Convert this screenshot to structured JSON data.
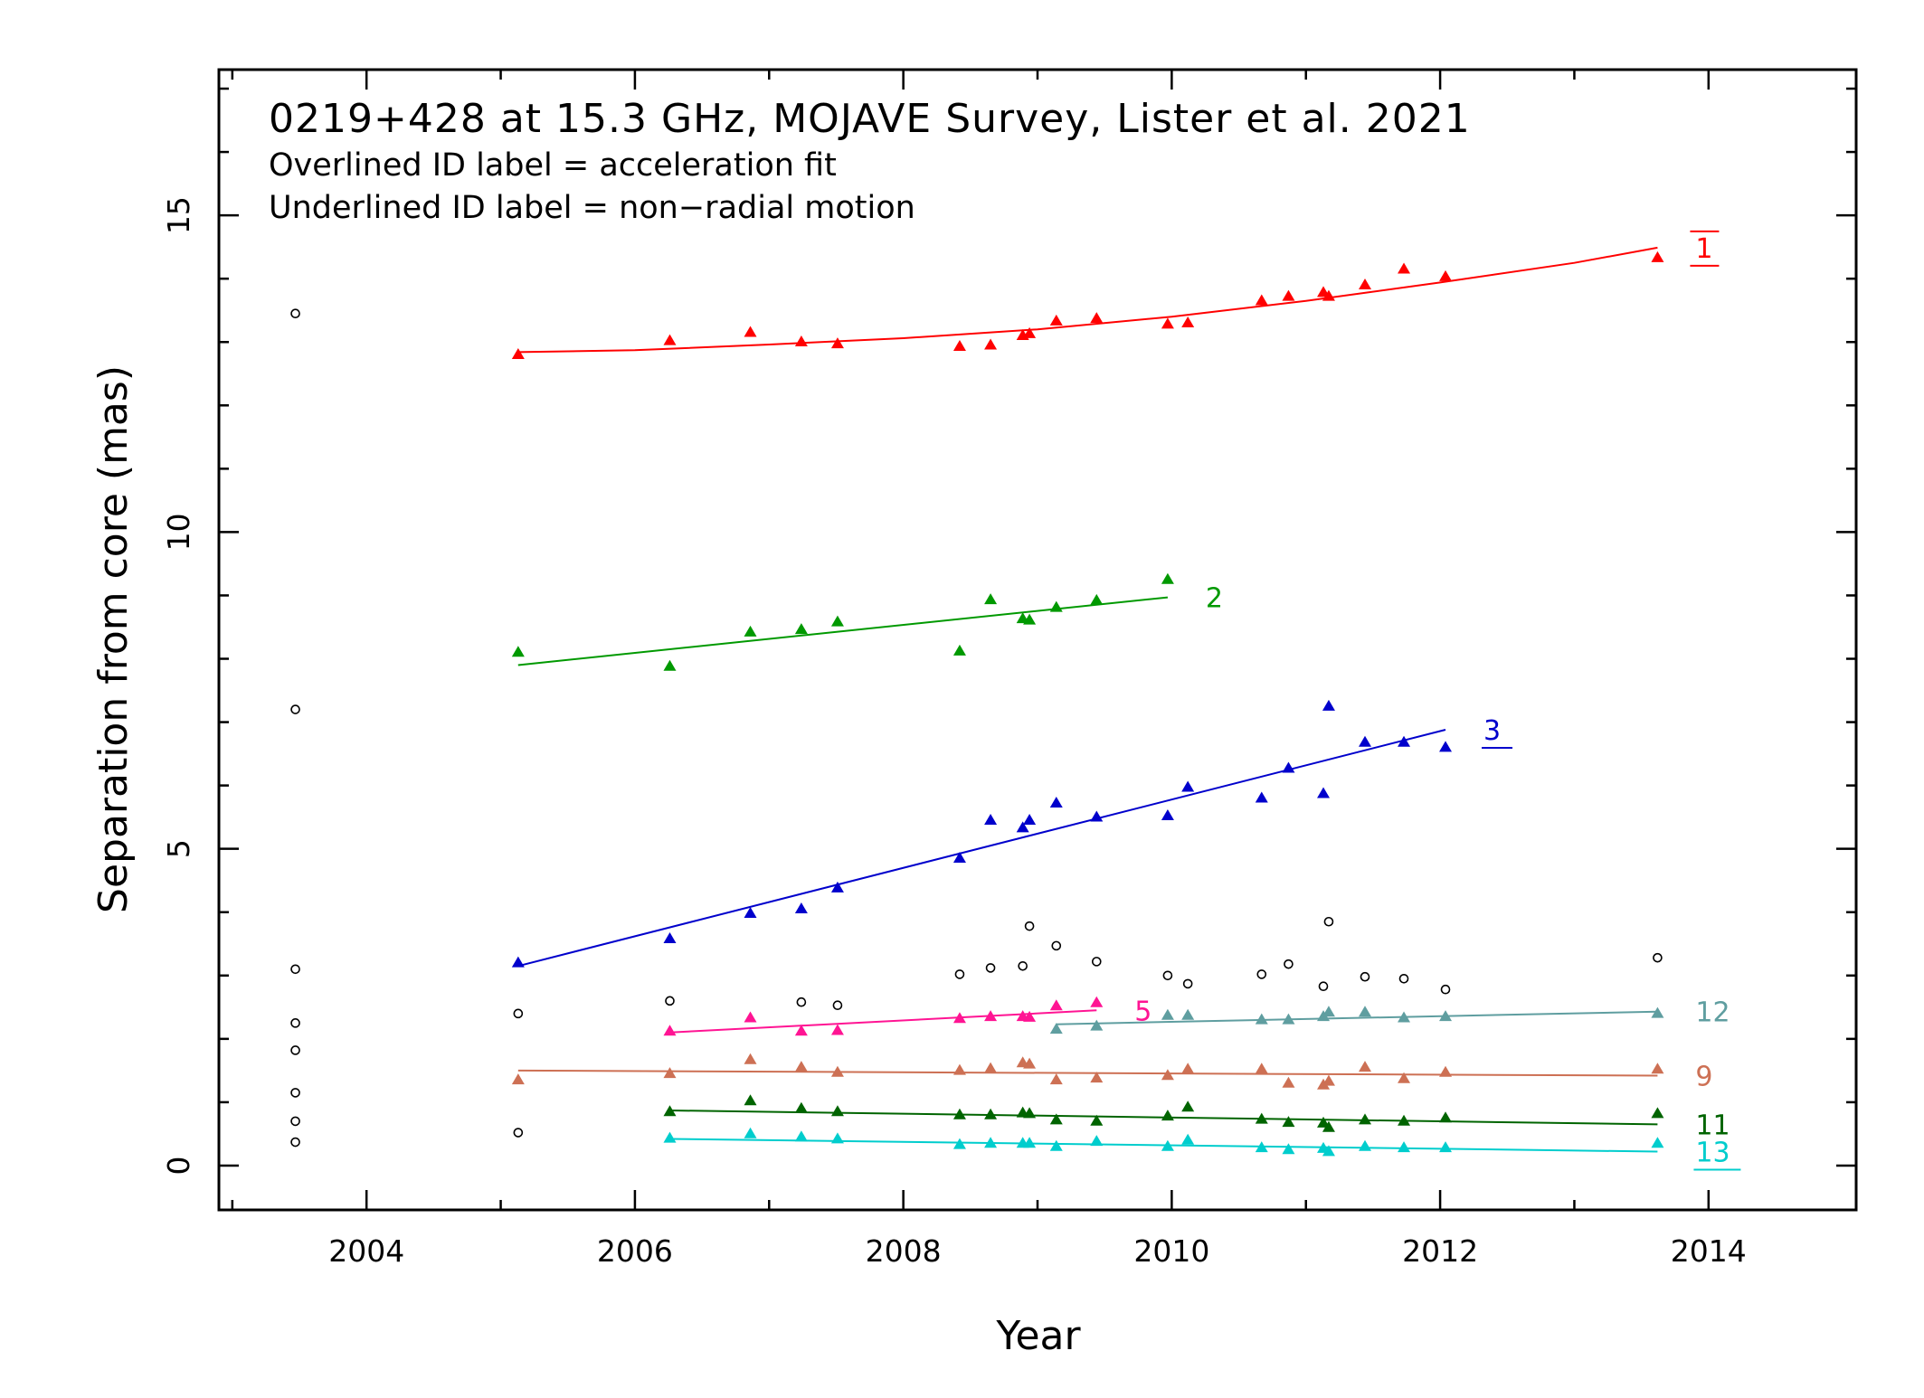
{
  "chart_data": {
    "type": "scatter",
    "title": "0219+428 at 15.3 GHz, MOJAVE Survey, Lister et al. 2021",
    "subtitle_lines": [
      "Overlined ID label = acceleration fit",
      "Underlined ID label = non−radial motion"
    ],
    "xlabel": "Year",
    "ylabel": "Separation from core (mas)",
    "xlim": [
      2002.9,
      2015.1
    ],
    "ylim": [
      -0.7,
      17.3
    ],
    "x_major_ticks": [
      2004,
      2006,
      2008,
      2010,
      2012,
      2014
    ],
    "y_major_ticks": [
      0,
      5,
      10,
      15
    ],
    "x_tick_labels": [
      "2004",
      "2006",
      "2008",
      "2010",
      "2012",
      "2014"
    ],
    "y_tick_labels": [
      "0",
      "5",
      "10",
      "15"
    ],
    "grid": false,
    "open_circles": [
      [
        2003.47,
        13.45
      ],
      [
        2003.47,
        7.2
      ],
      [
        2003.47,
        3.1
      ],
      [
        2003.47,
        2.25
      ],
      [
        2003.47,
        1.82
      ],
      [
        2003.47,
        1.15
      ],
      [
        2003.47,
        0.7
      ],
      [
        2003.47,
        0.37
      ],
      [
        2005.13,
        2.4
      ],
      [
        2005.13,
        0.52
      ],
      [
        2006.26,
        2.6
      ],
      [
        2007.24,
        2.58
      ],
      [
        2007.51,
        2.53
      ],
      [
        2008.42,
        3.02
      ],
      [
        2008.65,
        3.12
      ],
      [
        2008.89,
        3.15
      ],
      [
        2008.94,
        3.78
      ],
      [
        2009.14,
        3.47
      ],
      [
        2009.44,
        3.22
      ],
      [
        2009.97,
        3.0
      ],
      [
        2010.12,
        2.87
      ],
      [
        2010.67,
        3.02
      ],
      [
        2010.87,
        3.18
      ],
      [
        2011.13,
        2.83
      ],
      [
        2011.17,
        3.85
      ],
      [
        2011.44,
        2.98
      ],
      [
        2011.73,
        2.95
      ],
      [
        2012.04,
        2.78
      ],
      [
        2013.62,
        3.28
      ]
    ],
    "series": [
      {
        "name": "1",
        "color": "#ff0000",
        "label_style": "overline",
        "points": [
          [
            2005.13,
            12.8
          ],
          [
            2006.26,
            13.02
          ],
          [
            2006.86,
            13.15
          ],
          [
            2007.24,
            13.0
          ],
          [
            2007.51,
            12.97
          ],
          [
            2008.42,
            12.93
          ],
          [
            2008.65,
            12.95
          ],
          [
            2008.89,
            13.1
          ],
          [
            2008.94,
            13.13
          ],
          [
            2009.14,
            13.33
          ],
          [
            2009.44,
            13.37
          ],
          [
            2009.97,
            13.28
          ],
          [
            2010.12,
            13.3
          ],
          [
            2010.67,
            13.65
          ],
          [
            2010.87,
            13.72
          ],
          [
            2011.13,
            13.78
          ],
          [
            2011.17,
            13.72
          ],
          [
            2011.44,
            13.9
          ],
          [
            2011.73,
            14.15
          ],
          [
            2012.04,
            14.03
          ],
          [
            2013.62,
            14.33
          ]
        ],
        "fit": [
          [
            2005.13,
            12.84
          ],
          [
            2006.0,
            12.87
          ],
          [
            2007.0,
            12.96
          ],
          [
            2008.0,
            13.06
          ],
          [
            2009.0,
            13.2
          ],
          [
            2010.0,
            13.4
          ],
          [
            2011.0,
            13.65
          ],
          [
            2012.0,
            13.94
          ],
          [
            2013.0,
            14.25
          ],
          [
            2013.62,
            14.49
          ]
        ]
      },
      {
        "name": "2",
        "color": "#009900",
        "label_style": "plain",
        "points": [
          [
            2005.13,
            8.1
          ],
          [
            2006.26,
            7.88
          ],
          [
            2006.86,
            8.42
          ],
          [
            2007.24,
            8.46
          ],
          [
            2007.51,
            8.58
          ],
          [
            2008.42,
            8.12
          ],
          [
            2008.65,
            8.93
          ],
          [
            2008.89,
            8.63
          ],
          [
            2008.94,
            8.61
          ],
          [
            2009.14,
            8.81
          ],
          [
            2009.44,
            8.92
          ],
          [
            2009.97,
            9.25
          ]
        ],
        "fit": [
          [
            2005.13,
            7.9
          ],
          [
            2009.97,
            8.97
          ]
        ]
      },
      {
        "name": "3",
        "color": "#0000cc",
        "label_style": "underline",
        "points": [
          [
            2005.13,
            3.2
          ],
          [
            2006.26,
            3.58
          ],
          [
            2006.86,
            3.98
          ],
          [
            2007.24,
            4.05
          ],
          [
            2007.51,
            4.38
          ],
          [
            2008.42,
            4.85
          ],
          [
            2008.65,
            5.45
          ],
          [
            2008.89,
            5.33
          ],
          [
            2008.94,
            5.45
          ],
          [
            2009.14,
            5.72
          ],
          [
            2009.44,
            5.5
          ],
          [
            2009.97,
            5.52
          ],
          [
            2010.12,
            5.97
          ],
          [
            2010.67,
            5.8
          ],
          [
            2010.87,
            6.27
          ],
          [
            2011.13,
            5.87
          ],
          [
            2011.17,
            7.25
          ],
          [
            2011.44,
            6.68
          ],
          [
            2011.73,
            6.68
          ],
          [
            2012.04,
            6.6
          ]
        ],
        "fit": [
          [
            2005.13,
            3.15
          ],
          [
            2012.04,
            6.88
          ]
        ]
      },
      {
        "name": "5",
        "color": "#ff1493",
        "label_style": "plain",
        "points": [
          [
            2006.26,
            2.12
          ],
          [
            2006.86,
            2.33
          ],
          [
            2007.24,
            2.12
          ],
          [
            2007.51,
            2.13
          ],
          [
            2008.42,
            2.32
          ],
          [
            2008.65,
            2.35
          ],
          [
            2008.89,
            2.35
          ],
          [
            2008.94,
            2.34
          ],
          [
            2009.14,
            2.52
          ],
          [
            2009.44,
            2.57
          ]
        ],
        "fit": [
          [
            2006.26,
            2.1
          ],
          [
            2009.44,
            2.45
          ]
        ]
      },
      {
        "name": "12",
        "color": "#5f9ea0",
        "label_style": "plain",
        "points": [
          [
            2009.14,
            2.15
          ],
          [
            2009.44,
            2.2
          ],
          [
            2009.97,
            2.37
          ],
          [
            2010.12,
            2.37
          ],
          [
            2010.67,
            2.3
          ],
          [
            2010.87,
            2.3
          ],
          [
            2011.13,
            2.35
          ],
          [
            2011.17,
            2.42
          ],
          [
            2011.44,
            2.42
          ],
          [
            2011.73,
            2.33
          ],
          [
            2012.04,
            2.35
          ],
          [
            2013.62,
            2.4
          ]
        ],
        "fit": [
          [
            2009.14,
            2.23
          ],
          [
            2013.62,
            2.43
          ]
        ]
      },
      {
        "name": "9",
        "color": "#cd7054",
        "label_style": "plain",
        "points": [
          [
            2005.13,
            1.35
          ],
          [
            2006.26,
            1.45
          ],
          [
            2006.86,
            1.67
          ],
          [
            2007.24,
            1.55
          ],
          [
            2007.51,
            1.47
          ],
          [
            2008.42,
            1.5
          ],
          [
            2008.65,
            1.53
          ],
          [
            2008.89,
            1.62
          ],
          [
            2008.94,
            1.6
          ],
          [
            2009.14,
            1.35
          ],
          [
            2009.44,
            1.38
          ],
          [
            2009.97,
            1.42
          ],
          [
            2010.12,
            1.52
          ],
          [
            2010.67,
            1.52
          ],
          [
            2010.87,
            1.3
          ],
          [
            2011.13,
            1.27
          ],
          [
            2011.17,
            1.33
          ],
          [
            2011.44,
            1.55
          ],
          [
            2011.73,
            1.37
          ],
          [
            2012.04,
            1.47
          ],
          [
            2013.62,
            1.52
          ]
        ],
        "fit": [
          [
            2005.13,
            1.5
          ],
          [
            2013.62,
            1.42
          ]
        ]
      },
      {
        "name": "11",
        "color": "#006400",
        "label_style": "plain",
        "points": [
          [
            2006.26,
            0.85
          ],
          [
            2006.86,
            1.02
          ],
          [
            2007.24,
            0.9
          ],
          [
            2007.51,
            0.85
          ],
          [
            2008.42,
            0.8
          ],
          [
            2008.65,
            0.8
          ],
          [
            2008.89,
            0.83
          ],
          [
            2008.94,
            0.82
          ],
          [
            2009.14,
            0.72
          ],
          [
            2009.44,
            0.7
          ],
          [
            2009.97,
            0.78
          ],
          [
            2010.12,
            0.92
          ],
          [
            2010.67,
            0.73
          ],
          [
            2010.87,
            0.68
          ],
          [
            2011.13,
            0.67
          ],
          [
            2011.17,
            0.6
          ],
          [
            2011.44,
            0.72
          ],
          [
            2011.73,
            0.7
          ],
          [
            2012.04,
            0.75
          ],
          [
            2013.62,
            0.82
          ]
        ],
        "fit": [
          [
            2006.26,
            0.87
          ],
          [
            2013.62,
            0.65
          ]
        ]
      },
      {
        "name": "13",
        "color": "#00cdcd",
        "label_style": "underline",
        "points": [
          [
            2006.26,
            0.43
          ],
          [
            2006.86,
            0.5
          ],
          [
            2007.24,
            0.45
          ],
          [
            2007.51,
            0.42
          ],
          [
            2008.42,
            0.33
          ],
          [
            2008.65,
            0.35
          ],
          [
            2008.89,
            0.35
          ],
          [
            2008.94,
            0.35
          ],
          [
            2009.14,
            0.3
          ],
          [
            2009.44,
            0.38
          ],
          [
            2009.97,
            0.3
          ],
          [
            2010.12,
            0.4
          ],
          [
            2010.67,
            0.28
          ],
          [
            2010.87,
            0.25
          ],
          [
            2011.13,
            0.27
          ],
          [
            2011.17,
            0.22
          ],
          [
            2011.44,
            0.3
          ],
          [
            2011.73,
            0.28
          ],
          [
            2012.04,
            0.28
          ],
          [
            2013.62,
            0.35
          ]
        ],
        "fit": [
          [
            2006.26,
            0.42
          ],
          [
            2013.62,
            0.22
          ]
        ]
      }
    ]
  }
}
